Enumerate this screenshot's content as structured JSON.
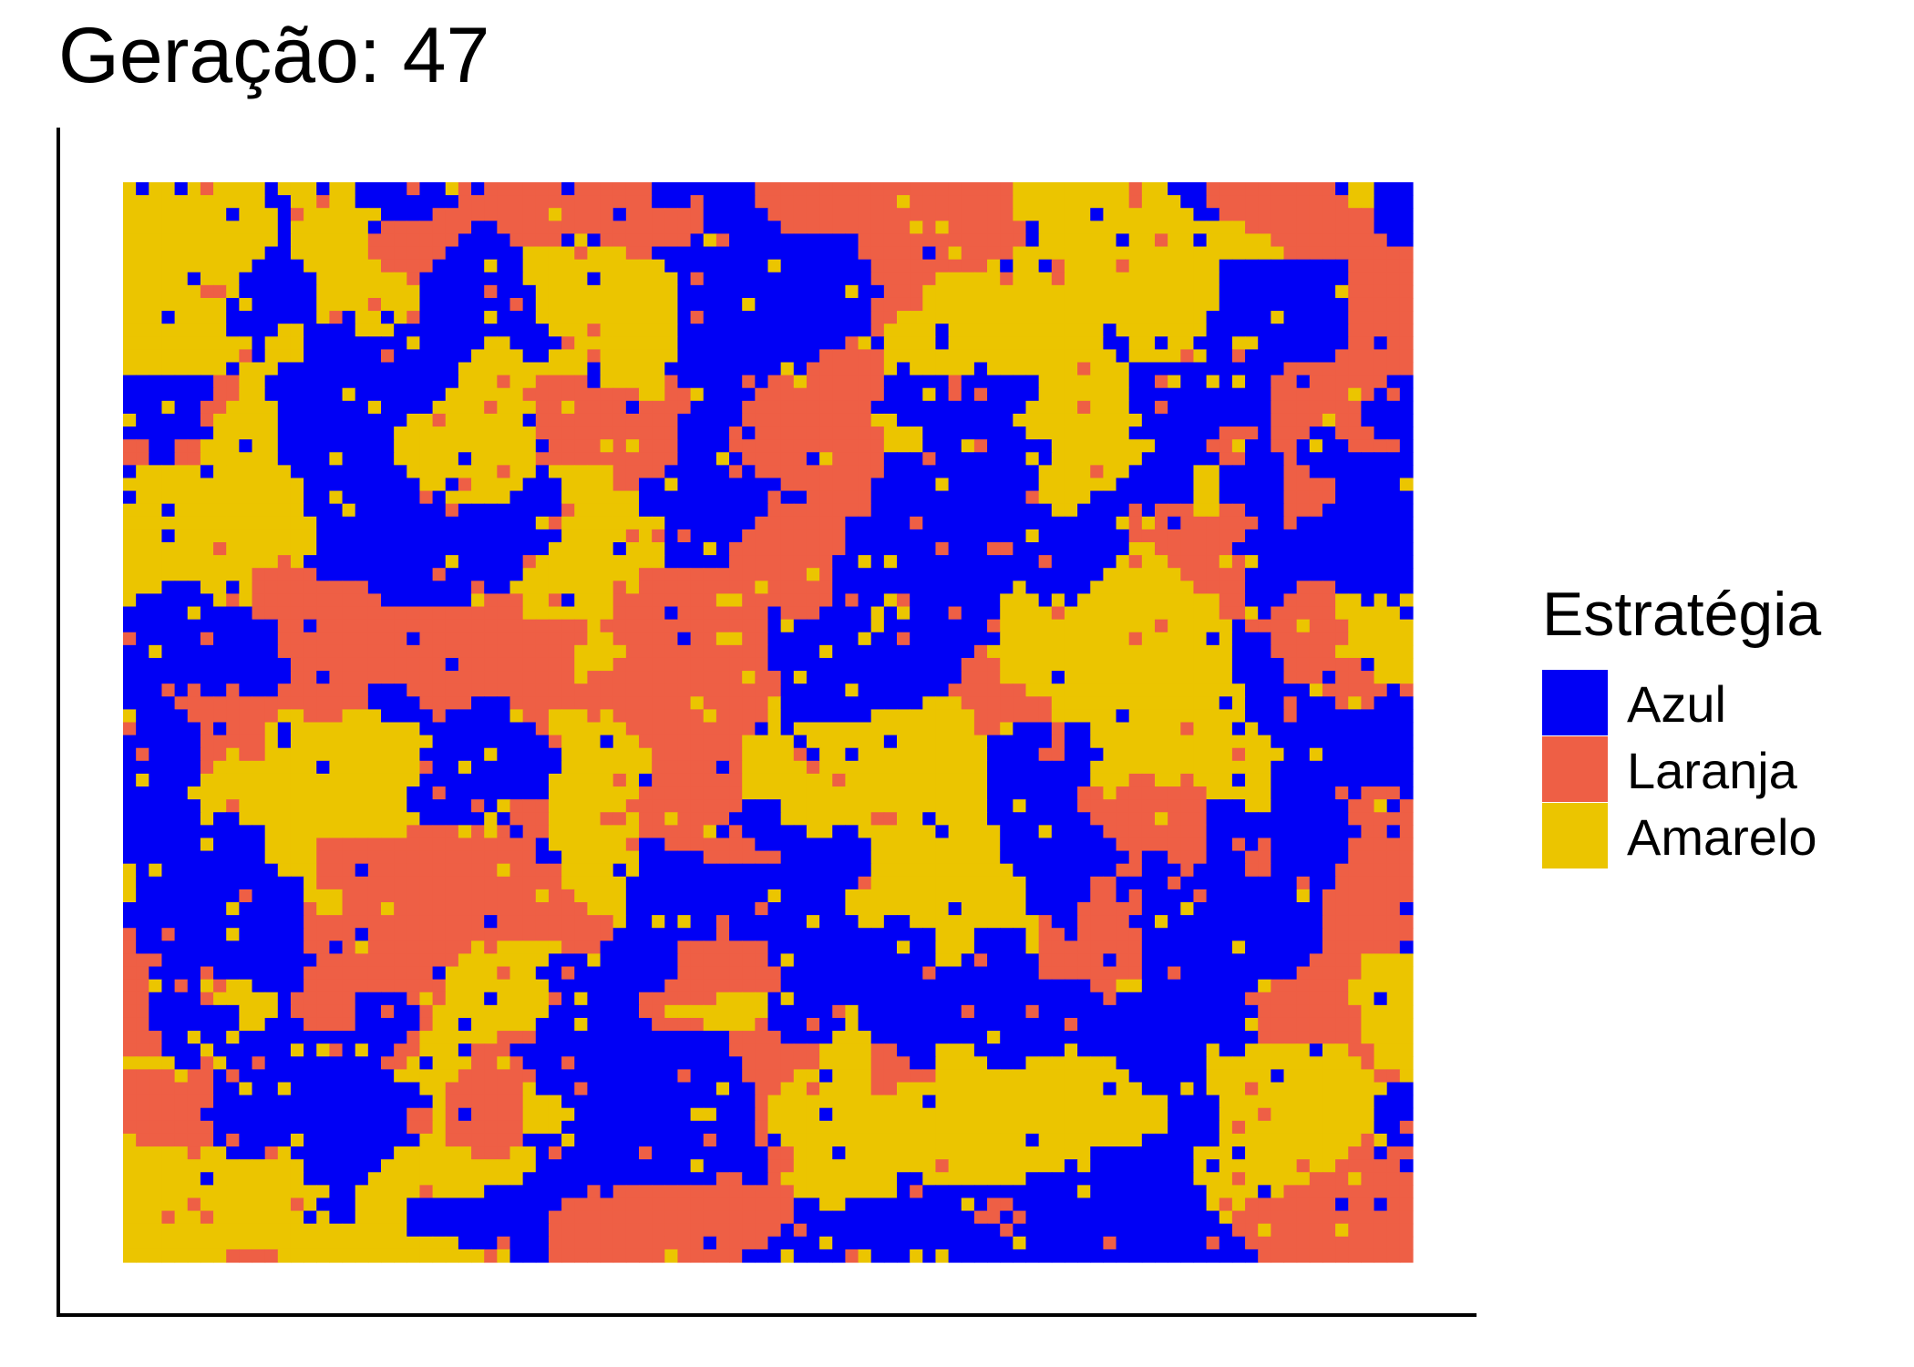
{
  "chart_data": {
    "type": "heatmap",
    "title": "Geração: 47",
    "xlabel": "",
    "ylabel": "",
    "grid": false,
    "legend": {
      "title": "Estratégia",
      "placement": "right",
      "entries": [
        {
          "label": "Azul",
          "color": "#0000f5"
        },
        {
          "label": "Laranja",
          "color": "#ee5f45"
        },
        {
          "label": "Amarelo",
          "color": "#ebc500"
        }
      ]
    },
    "categories": [
      "Azul",
      "Laranja",
      "Amarelo"
    ],
    "colors": {
      "Azul": "#0000f5",
      "Laranja": "#ee5f45",
      "Amarelo": "#ebc500"
    },
    "grid_size": {
      "columns": 100,
      "rows": 84
    },
    "generation": 47
  }
}
